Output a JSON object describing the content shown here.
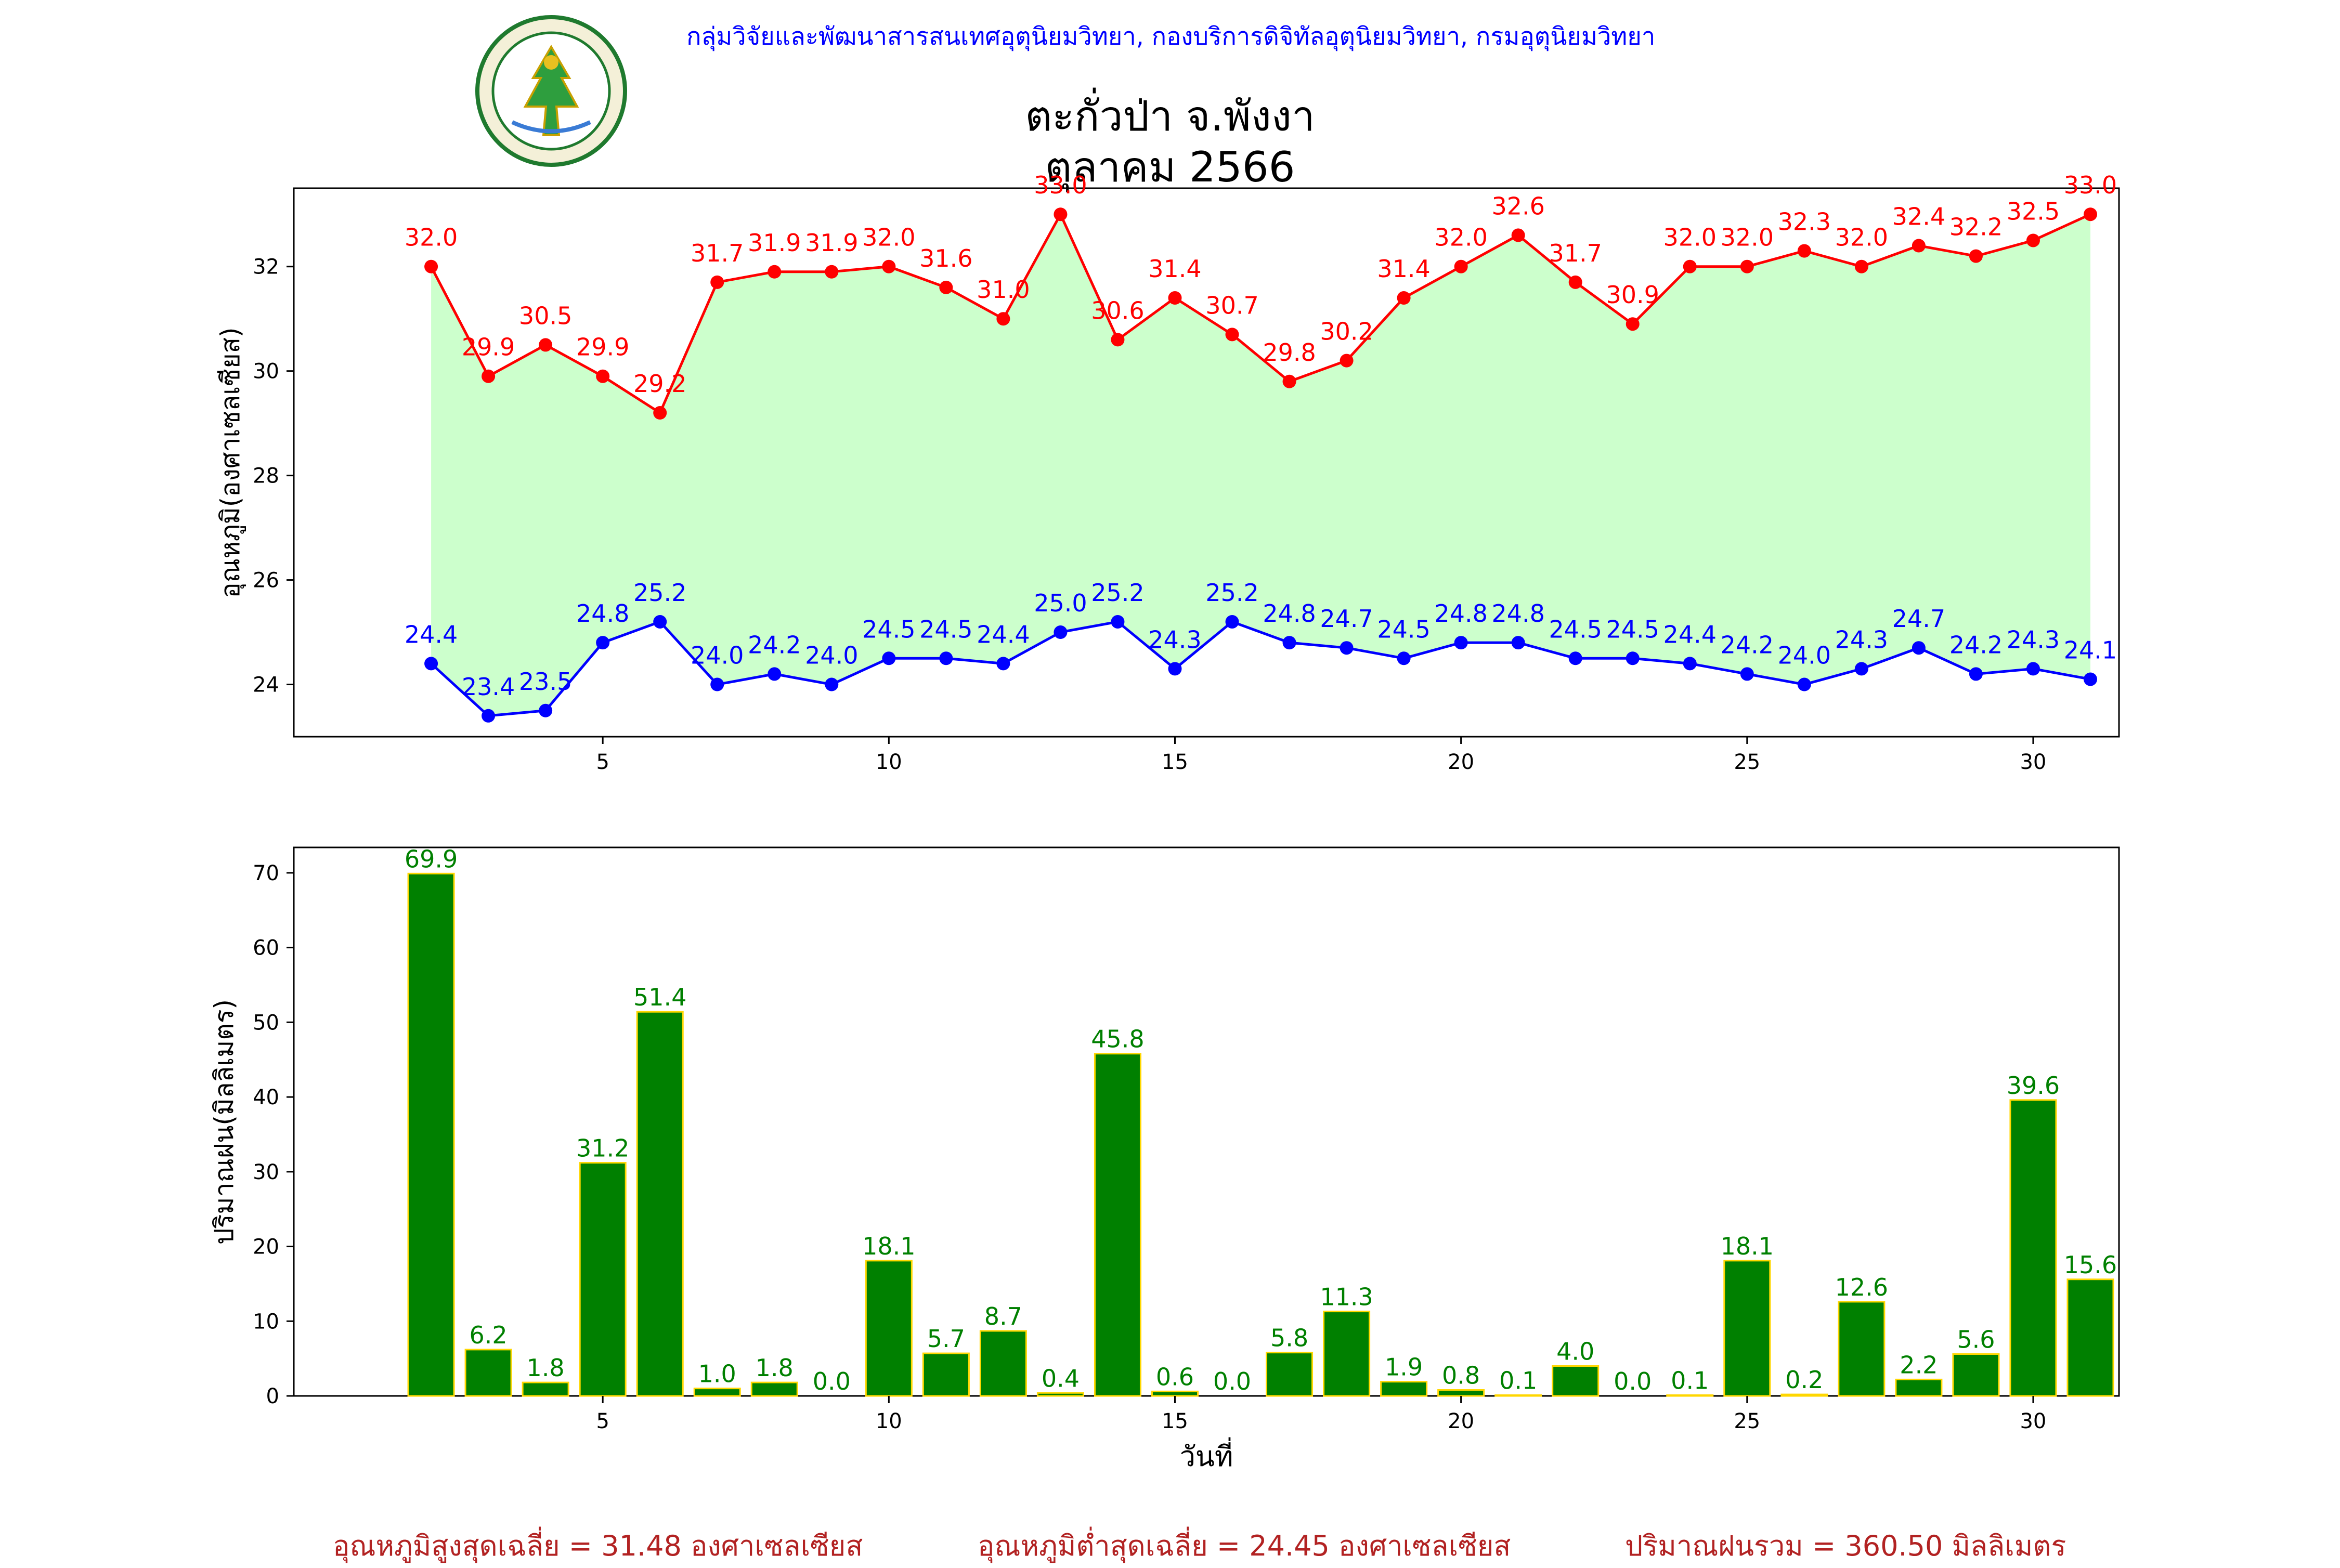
{
  "header": {
    "credit": "กลุ่มวิจัยและพัฒนาสารสนเทศอุตุนิยมวิทยา, กองบริการดิจิทัลอุตุนิยมวิทยา, กรมอุตุนิยมวิทยา",
    "title_line1": "ตะกั่วป่า จ.พังงา",
    "title_line2": "ตุลาคม 2566",
    "logo_text": "กรมอุตุนิยมวิทยา",
    "logo_subtext": "METEOROLOGICAL DEPARTMENT"
  },
  "chart_data": [
    {
      "type": "line",
      "ylabel": "อุณหภูมิ(องศาเซลเซียส)",
      "xlabel": "",
      "x": [
        2,
        3,
        4,
        5,
        6,
        7,
        8,
        9,
        10,
        11,
        12,
        13,
        14,
        15,
        16,
        17,
        18,
        19,
        20,
        21,
        22,
        23,
        24,
        25,
        26,
        27,
        28,
        29,
        30,
        31
      ],
      "xlim": [
        -2.4,
        29.5
      ],
      "ylim": [
        23.0,
        33.5
      ],
      "xticks": [
        5,
        10,
        15,
        20,
        25,
        30
      ],
      "yticks": [
        24,
        26,
        28,
        30,
        32
      ],
      "fill_between": true,
      "grid": false,
      "series": [
        {
          "color": "#ff0000",
          "values": [
            32.0,
            29.9,
            30.5,
            29.9,
            29.2,
            31.7,
            31.9,
            31.9,
            32.0,
            31.6,
            31.0,
            33.0,
            30.6,
            31.4,
            30.7,
            29.8,
            30.2,
            31.4,
            32.0,
            32.6,
            31.7,
            30.9,
            32.0,
            32.0,
            32.3,
            32.0,
            32.4,
            32.2,
            32.5,
            33.0
          ]
        },
        {
          "color": "#0000ff",
          "values": [
            24.4,
            23.4,
            23.5,
            24.8,
            25.2,
            24.0,
            24.2,
            24.0,
            24.5,
            24.5,
            24.4,
            25.0,
            25.2,
            24.3,
            25.2,
            24.8,
            24.7,
            24.5,
            24.8,
            24.8,
            24.5,
            24.5,
            24.4,
            24.2,
            24.0,
            24.3,
            24.7,
            24.2,
            24.3,
            24.1
          ]
        }
      ],
      "fill_color": "#ccffcc"
    },
    {
      "type": "bar",
      "ylabel": "ปริมาณฝน(มิลลิเมตร)",
      "xlabel": "วันที่",
      "x": [
        2,
        3,
        4,
        5,
        6,
        7,
        8,
        9,
        10,
        11,
        12,
        13,
        14,
        15,
        16,
        17,
        18,
        19,
        20,
        21,
        22,
        23,
        24,
        25,
        26,
        27,
        28,
        29,
        30,
        31
      ],
      "values": [
        69.9,
        6.2,
        1.8,
        31.2,
        51.4,
        1.0,
        1.8,
        0.0,
        18.1,
        5.7,
        8.7,
        0.4,
        45.8,
        0.6,
        0.0,
        5.8,
        11.3,
        1.9,
        0.8,
        0.1,
        4.0,
        0.0,
        0.1,
        18.1,
        0.2,
        12.6,
        2.2,
        5.6,
        39.6,
        15.6
      ],
      "xlim": [
        -2.4,
        29.5
      ],
      "ylim": [
        0,
        73.4
      ],
      "xticks": [
        5,
        10,
        15,
        20,
        25,
        30
      ],
      "yticks": [
        0,
        10,
        20,
        30,
        40,
        50,
        60,
        70
      ],
      "bar_color": "#008000",
      "edge_color": "#ffd700",
      "label_color": "#008000",
      "grid": false
    }
  ],
  "footer": {
    "avg_max": "อุณหภูมิสูงสุดเฉลี่ย = 31.48 องศาเซลเซียส",
    "avg_min": "อุณหภูมิต่ำสุดเฉลี่ย = 24.45 องศาเซลเซียส",
    "rain_total": "ปริมาณฝนรวม = 360.50 มิลลิเมตร"
  }
}
